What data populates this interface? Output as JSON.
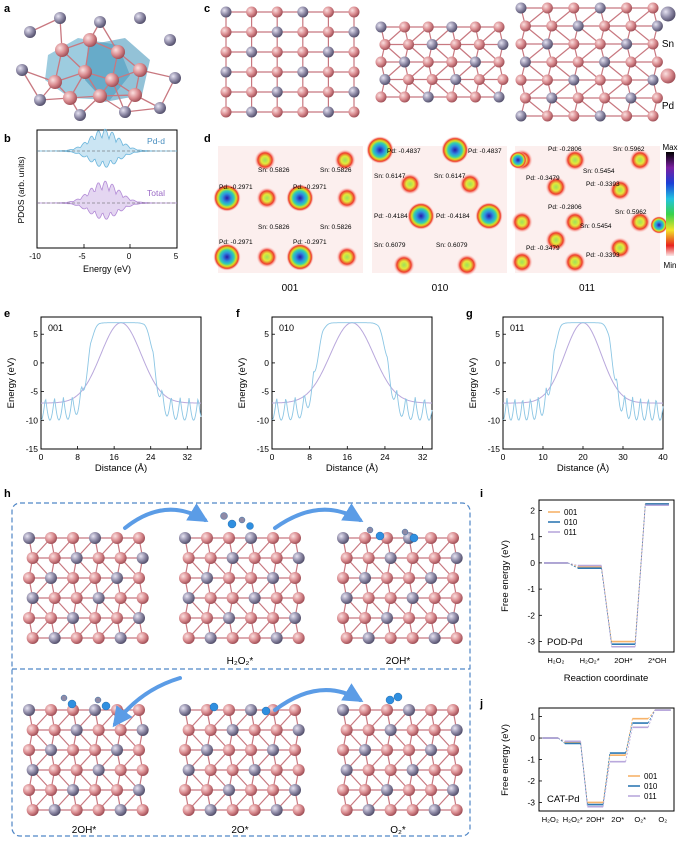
{
  "panel_labels": {
    "a": "a",
    "b": "b",
    "c": "c",
    "d": "d",
    "e": "e",
    "f": "f",
    "g": "g",
    "h": "h",
    "i": "i",
    "j": "j"
  },
  "legend_atoms": {
    "sn": "Sn",
    "pd": "Pd"
  },
  "colors": {
    "sn": "#8e8aa6",
    "pd": "#d98b8f",
    "bond": "#c87880",
    "poly": "#4da3c4",
    "pdd": "#6ab5dc",
    "total": "#b28ad6",
    "c001": "#f7b36a",
    "c010": "#2f7ab4",
    "c011": "#b9a8dc",
    "arrow": "#5b9ce6",
    "dash": "#4f86c6",
    "line": "#8cc6e4"
  },
  "pdos": {
    "ylabel": "PDOS (arb. units)",
    "xlabel": "Energy (eV)",
    "ticks": [
      "-10",
      "-5",
      "0",
      "5"
    ],
    "series": [
      "Pd-d",
      "Total"
    ]
  },
  "charge_maps": {
    "facets": [
      "001",
      "010",
      "011"
    ],
    "colorbar": {
      "max": "Max",
      "min": "Min"
    },
    "m001": [
      "Sn: 0.5826",
      "Sn: 0.5826",
      "Pd: -0.2971",
      "Pd: -0.2971",
      "Sn: 0.5826",
      "Sn: 0.5826",
      "Pd: -0.2971",
      "Pd: -0.2971"
    ],
    "m010": [
      "Pd: -0.4837",
      "Pd: -0.4837",
      "Sn: 0.6147",
      "Sn: 0.6147",
      "Pd: -0.4184",
      "Pd: -0.4184",
      "Sn: 0.6079",
      "Sn: 0.6079"
    ],
    "m011": [
      "Pd: -0.2806",
      "Sn: 0.5962",
      "Pd: -0.3479",
      "Sn: 0.5454",
      "Pd: -0.3393",
      "Pd: -0.2806",
      "Sn: 0.5962",
      "Sn: 0.5454",
      "Pd: -0.3479",
      "Pd: -0.3393"
    ]
  },
  "potential_profiles": {
    "ylabel": "Energy (eV)",
    "xlabel": "Distance (Å)",
    "yticks": [
      "5",
      "0",
      "-5",
      "-10",
      "-15"
    ],
    "e": {
      "label": "001",
      "xticks": [
        "0",
        "8",
        "16",
        "24",
        "32"
      ]
    },
    "f": {
      "label": "010",
      "xticks": [
        "0",
        "8",
        "16",
        "24",
        "32"
      ]
    },
    "g": {
      "label": "011",
      "xticks": [
        "0",
        "10",
        "20",
        "30",
        "40"
      ]
    }
  },
  "mechanism": {
    "labels": [
      "H₂O₂*",
      "2OH*",
      "2OH*",
      "2O*",
      "O₂*"
    ]
  },
  "chart_data": [
    {
      "type": "line",
      "title": "POD-Pd",
      "ylabel": "Free energy (eV)",
      "xlabel": "Reaction coordinate",
      "categories": [
        "H₂O₂",
        "H₂O₂*",
        "2OH*",
        "2*OH"
      ],
      "yticks": [
        "2",
        "1",
        "0",
        "-1",
        "-2",
        "-3"
      ],
      "ylim": [
        -3.4,
        2.4
      ],
      "series": [
        {
          "name": "001",
          "values": [
            0.0,
            -0.15,
            -3.0,
            2.25
          ]
        },
        {
          "name": "010",
          "values": [
            0.0,
            -0.2,
            -3.1,
            2.25
          ]
        },
        {
          "name": "011",
          "values": [
            0.0,
            -0.1,
            -3.2,
            2.2
          ]
        }
      ]
    },
    {
      "type": "line",
      "title": "CAT-Pd",
      "ylabel": "Free energy (eV)",
      "xlabel": "Reaction coordinate",
      "categories": [
        "H₂O₂",
        "H₂O₂*",
        "2OH*",
        "2O*",
        "O₂*",
        "O₂"
      ],
      "yticks": [
        "1",
        "0",
        "-1",
        "-2",
        "-3"
      ],
      "ylim": [
        -3.4,
        1.4
      ],
      "series": [
        {
          "name": "001",
          "values": [
            0.0,
            -0.2,
            -3.0,
            -0.8,
            0.9,
            1.3
          ]
        },
        {
          "name": "010",
          "values": [
            0.0,
            -0.25,
            -3.1,
            -0.7,
            0.7,
            1.3
          ]
        },
        {
          "name": "011",
          "values": [
            0.0,
            -0.15,
            -3.2,
            -1.1,
            0.5,
            1.3
          ]
        }
      ]
    }
  ]
}
